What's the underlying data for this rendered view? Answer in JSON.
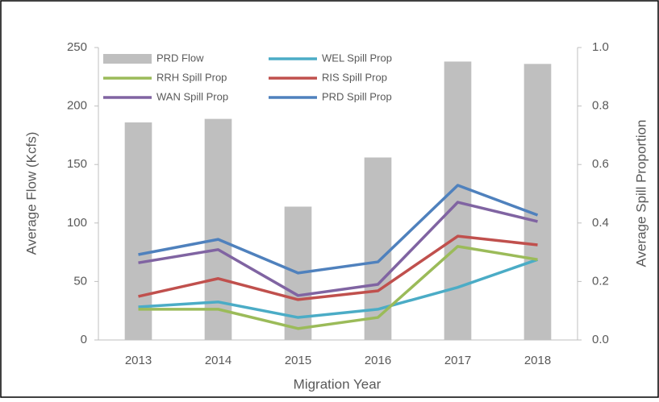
{
  "chart_data": {
    "type": "combo",
    "xlabel": "Migration Year",
    "ylabel": "Average Flow (Kcfs)",
    "y2label": "Average Spill Proportion",
    "categories": [
      "2013",
      "2014",
      "2015",
      "2016",
      "2017",
      "2018"
    ],
    "ylim": [
      0,
      250
    ],
    "yticks": [
      0,
      50,
      100,
      150,
      200,
      250
    ],
    "y2lim": [
      0,
      1.0
    ],
    "y2ticks": [
      {
        "value": 0,
        "label": "0.0"
      },
      {
        "value": 0.2,
        "label": "0.2"
      },
      {
        "value": 0.4,
        "label": "0.4"
      },
      {
        "value": 0.6,
        "label": "0.6"
      },
      {
        "value": 0.8,
        "label": "0.8"
      },
      {
        "value": 1.0,
        "label": "1.0"
      }
    ],
    "legend": "upper left",
    "series": [
      {
        "name": "PRD Flow",
        "type": "bar",
        "color": "#bfbfbf",
        "values": [
          186,
          189,
          114,
          156,
          238,
          236
        ]
      },
      {
        "name": "WEL Spill Prop",
        "type": "line",
        "axis": "y2",
        "color": "#4bacc6",
        "values": [
          0.113,
          0.13,
          0.077,
          0.105,
          0.18,
          0.275
        ]
      },
      {
        "name": "RRH Spill Prop",
        "type": "line",
        "axis": "y2",
        "color": "#9bbb59",
        "values": [
          0.105,
          0.105,
          0.039,
          0.077,
          0.32,
          0.275
        ]
      },
      {
        "name": "RIS Spill Prop",
        "type": "line",
        "axis": "y2",
        "color": "#c0504d",
        "values": [
          0.149,
          0.21,
          0.138,
          0.168,
          0.355,
          0.325
        ]
      },
      {
        "name": "WAN Spill Prop",
        "type": "line",
        "axis": "y2",
        "color": "#8064a2",
        "values": [
          0.264,
          0.309,
          0.152,
          0.19,
          0.471,
          0.405
        ]
      },
      {
        "name": "PRD Spill Prop",
        "type": "line",
        "axis": "y2",
        "color": "#4f81bd",
        "values": [
          0.292,
          0.344,
          0.229,
          0.267,
          0.529,
          0.427
        ]
      }
    ]
  }
}
